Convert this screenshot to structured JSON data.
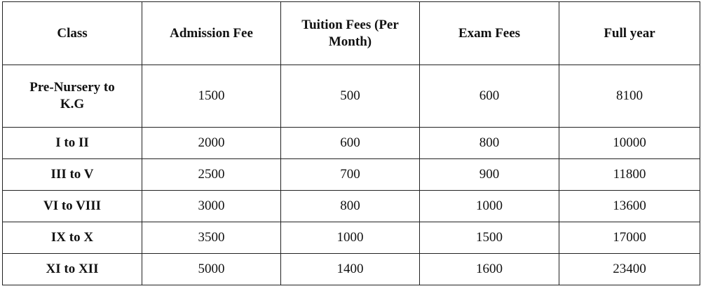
{
  "table": {
    "headers": [
      "Class",
      "Admission Fee",
      "Tuition Fees (Per Month)",
      "Exam Fees",
      "Full year"
    ],
    "rows": [
      [
        "Pre-Nursery to K.G",
        "1500",
        "500",
        "600",
        "8100"
      ],
      [
        "I to II",
        "2000",
        "600",
        "800",
        "10000"
      ],
      [
        "III to V",
        "2500",
        "700",
        "900",
        "11800"
      ],
      [
        "VI to VIII",
        "3000",
        "800",
        "1000",
        "13600"
      ],
      [
        "IX to X",
        "3500",
        "1000",
        "1500",
        "17000"
      ],
      [
        "XI to XII",
        "5000",
        "1400",
        "1600",
        "23400"
      ]
    ]
  }
}
